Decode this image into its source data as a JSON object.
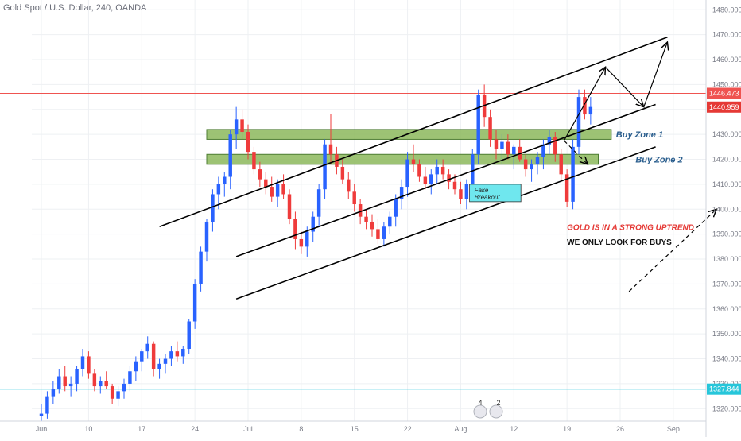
{
  "header": {
    "title": "Gold Spot / U.S. Dollar, 240, OANDA"
  },
  "colors": {
    "up": "#2962ff",
    "down": "#ef3b3b",
    "zone_fill": "#8cb85c",
    "zone_edge": "#4e7d33",
    "grid": "#eef0f3",
    "axis_text": "#787b86",
    "res_line": "#ef5350",
    "sup_line": "#26c6da",
    "fake_box": "#6fe7ee",
    "zone_label": "#2a5e8e",
    "annot_red": "#e53935",
    "annot_dark": "#111111"
  },
  "chart_data": {
    "type": "candlestick",
    "title": "Gold Spot / U.S. Dollar, 240, OANDA",
    "ylim": [
      1315,
      1482
    ],
    "y_ticks": [
      1320,
      1330,
      1340,
      1350,
      1360,
      1370,
      1380,
      1390,
      1400,
      1410,
      1420,
      1430,
      1440,
      1450,
      1460,
      1470,
      1480
    ],
    "x_ticks": [
      "Jun",
      "10",
      "17",
      "24",
      "Jul",
      "8",
      "15",
      "22",
      "Aug",
      "12",
      "19",
      "26",
      "Sep"
    ],
    "x_tick_pos": [
      0,
      8,
      17,
      26,
      35,
      44,
      53,
      62,
      71,
      80,
      89,
      98,
      107
    ],
    "x_max": 112,
    "price_labels": [
      {
        "value": 1446.473,
        "text": "1446.473",
        "kind": "resistance"
      },
      {
        "value": 1440.959,
        "text": "1440.959",
        "kind": "last"
      },
      {
        "value": 1327.844,
        "text": "1327.844",
        "kind": "support"
      }
    ],
    "horizontal_lines": [
      {
        "value": 1446.473,
        "kind": "resistance"
      },
      {
        "value": 1327.844,
        "kind": "support"
      }
    ],
    "zones": [
      {
        "label": "Buy Zone 1",
        "x0": 28.0,
        "x1": 96.5,
        "y0": 1428,
        "y1": 1432
      },
      {
        "label": "Buy Zone 2",
        "x0": 28.0,
        "x1": 94.3,
        "y0": 1418,
        "y1": 1422
      }
    ],
    "trendlines": [
      {
        "x1": 20,
        "y1": 1393,
        "x2": 106,
        "y2": 1469
      },
      {
        "x1": 33,
        "y1": 1381,
        "x2": 104,
        "y2": 1442
      },
      {
        "x1": 33,
        "y1": 1364,
        "x2": 104,
        "y2": 1425
      }
    ],
    "projection": [
      {
        "x": 88.5,
        "y": 1427.5
      },
      {
        "x": 95.5,
        "y": 1457
      },
      {
        "x": 102,
        "y": 1441
      },
      {
        "x": 106,
        "y": 1467
      }
    ],
    "dashed_arrows": [
      {
        "x1": 88.5,
        "y1": 1427.5,
        "x2": 92.5,
        "y2": 1418
      },
      {
        "x1": 99.5,
        "y1": 1367,
        "x2": 114.3,
        "y2": 1400
      }
    ],
    "annotations": [
      {
        "text": "Buy Zone 1",
        "x": 97.3,
        "y": 1430,
        "style": "zone"
      },
      {
        "text": "Buy Zone 2",
        "x": 100.6,
        "y": 1420,
        "style": "zone"
      },
      {
        "text": "GOLD IS IN A STRONG UPTREND",
        "x": 89.0,
        "y": 1393,
        "style": "red"
      },
      {
        "text": "WE ONLY LOOK FOR BUYS",
        "x": 89.0,
        "y": 1387,
        "style": "dark"
      }
    ],
    "fake_breakout": {
      "label_line1": "Fake",
      "label_line2": "Breakout",
      "x0": 72.5,
      "x1": 81.2,
      "y0": 1403,
      "y1": 1410
    },
    "candles": [
      [
        1317,
        1315,
        1322,
        1318
      ],
      [
        1318,
        1316,
        1327,
        1325
      ],
      [
        1325,
        1322,
        1331,
        1328
      ],
      [
        1328,
        1326,
        1336,
        1333
      ],
      [
        1333,
        1327,
        1337,
        1329
      ],
      [
        1329,
        1325,
        1333,
        1330
      ],
      [
        1330,
        1327,
        1337,
        1336
      ],
      [
        1336,
        1333,
        1344,
        1341
      ],
      [
        1341,
        1332,
        1343,
        1334
      ],
      [
        1334,
        1327,
        1336,
        1329
      ],
      [
        1329,
        1326,
        1333,
        1331
      ],
      [
        1331,
        1328,
        1335,
        1329
      ],
      [
        1329,
        1322,
        1330,
        1324
      ],
      [
        1324,
        1321,
        1329,
        1327
      ],
      [
        1327,
        1324,
        1332,
        1330
      ],
      [
        1330,
        1327,
        1337,
        1335
      ],
      [
        1335,
        1331,
        1341,
        1339
      ],
      [
        1339,
        1335,
        1344,
        1343
      ],
      [
        1343,
        1340,
        1349,
        1346
      ],
      [
        1346,
        1333,
        1347,
        1336
      ],
      [
        1336,
        1332,
        1340,
        1338
      ],
      [
        1338,
        1334,
        1342,
        1340
      ],
      [
        1340,
        1337,
        1345,
        1343
      ],
      [
        1343,
        1339,
        1347,
        1341
      ],
      [
        1341,
        1338,
        1345,
        1344
      ],
      [
        1344,
        1342,
        1356,
        1355
      ],
      [
        1355,
        1352,
        1372,
        1370
      ],
      [
        1370,
        1367,
        1385,
        1383
      ],
      [
        1383,
        1379,
        1396,
        1395
      ],
      [
        1395,
        1391,
        1408,
        1406
      ],
      [
        1406,
        1400,
        1413,
        1410
      ],
      [
        1410,
        1405,
        1415,
        1413
      ],
      [
        1413,
        1408,
        1432,
        1430
      ],
      [
        1430,
        1424,
        1441,
        1436
      ],
      [
        1436,
        1428,
        1440,
        1431
      ],
      [
        1431,
        1420,
        1434,
        1423
      ],
      [
        1423,
        1414,
        1425,
        1416
      ],
      [
        1416,
        1409,
        1419,
        1412
      ],
      [
        1412,
        1406,
        1415,
        1409
      ],
      [
        1409,
        1403,
        1413,
        1405
      ],
      [
        1405,
        1401,
        1412,
        1410
      ],
      [
        1410,
        1404,
        1414,
        1406
      ],
      [
        1406,
        1394,
        1408,
        1396
      ],
      [
        1396,
        1384,
        1399,
        1388
      ],
      [
        1388,
        1382,
        1391,
        1385
      ],
      [
        1385,
        1381,
        1393,
        1391
      ],
      [
        1391,
        1387,
        1399,
        1397
      ],
      [
        1397,
        1393,
        1410,
        1408
      ],
      [
        1408,
        1404,
        1428,
        1426
      ],
      [
        1426,
        1418,
        1438,
        1422
      ],
      [
        1422,
        1414,
        1425,
        1417
      ],
      [
        1417,
        1410,
        1420,
        1412
      ],
      [
        1412,
        1404,
        1415,
        1407
      ],
      [
        1407,
        1399,
        1410,
        1402
      ],
      [
        1402,
        1394,
        1404,
        1397
      ],
      [
        1397,
        1392,
        1400,
        1395
      ],
      [
        1395,
        1389,
        1398,
        1392
      ],
      [
        1392,
        1386,
        1396,
        1388
      ],
      [
        1388,
        1385,
        1395,
        1393
      ],
      [
        1393,
        1390,
        1399,
        1397
      ],
      [
        1397,
        1393,
        1406,
        1404
      ],
      [
        1404,
        1400,
        1412,
        1409
      ],
      [
        1409,
        1405,
        1423,
        1420
      ],
      [
        1420,
        1415,
        1426,
        1418
      ],
      [
        1418,
        1411,
        1420,
        1413
      ],
      [
        1413,
        1408,
        1417,
        1410
      ],
      [
        1410,
        1406,
        1416,
        1414
      ],
      [
        1414,
        1410,
        1420,
        1417
      ],
      [
        1417,
        1412,
        1420,
        1414
      ],
      [
        1414,
        1408,
        1416,
        1411
      ],
      [
        1411,
        1406,
        1414,
        1408
      ],
      [
        1408,
        1402,
        1411,
        1404
      ],
      [
        1404,
        1400,
        1412,
        1410
      ],
      [
        1410,
        1406,
        1424,
        1422
      ],
      [
        1422,
        1418,
        1448,
        1446
      ],
      [
        1446,
        1433,
        1450,
        1437
      ],
      [
        1437,
        1425,
        1440,
        1428
      ],
      [
        1428,
        1420,
        1432,
        1424
      ],
      [
        1424,
        1418,
        1430,
        1427
      ],
      [
        1427,
        1420,
        1430,
        1422
      ],
      [
        1422,
        1416,
        1426,
        1425
      ],
      [
        1425,
        1419,
        1428,
        1420
      ],
      [
        1420,
        1413,
        1422,
        1416
      ],
      [
        1416,
        1411,
        1420,
        1418
      ],
      [
        1418,
        1414,
        1423,
        1421
      ],
      [
        1421,
        1416,
        1428,
        1426
      ],
      [
        1426,
        1422,
        1432,
        1429
      ],
      [
        1429,
        1419,
        1431,
        1422
      ],
      [
        1422,
        1411,
        1424,
        1414
      ],
      [
        1414,
        1401,
        1416,
        1403
      ],
      [
        1403,
        1400,
        1428,
        1425
      ],
      [
        1425,
        1422,
        1448,
        1445
      ],
      [
        1445,
        1436,
        1448,
        1438
      ],
      [
        1438,
        1434,
        1445,
        1441
      ]
    ]
  }
}
